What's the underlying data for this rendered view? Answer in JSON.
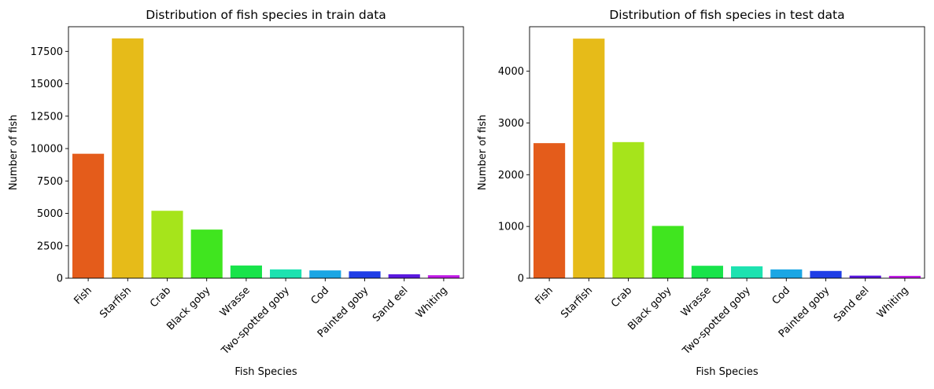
{
  "chart_data": [
    {
      "type": "bar",
      "title": "Distribution of fish species in train data",
      "xlabel": "Fish Species",
      "ylabel": "Number of fish",
      "categories": [
        "Fish",
        "Starfish",
        "Crab",
        "Black goby",
        "Wrasse",
        "Two-spotted goby",
        "Cod",
        "Painted goby",
        "Sand eel",
        "Whiting"
      ],
      "values": [
        9600,
        18500,
        5200,
        3750,
        980,
        680,
        600,
        530,
        300,
        230
      ],
      "ylim": [
        0,
        19400
      ],
      "yticks": [
        0,
        2500,
        5000,
        7500,
        10000,
        12500,
        15000,
        17500
      ],
      "ytick_labels": [
        "0",
        "2500",
        "5000",
        "7500",
        "10000",
        "12500",
        "15000",
        "17500"
      ],
      "grid": false
    },
    {
      "type": "bar",
      "title": "Distribution of fish species in test data",
      "xlabel": "Fish Species",
      "ylabel": "Number of fish",
      "categories": [
        "Fish",
        "Starfish",
        "Crab",
        "Black goby",
        "Wrasse",
        "Two-spotted goby",
        "Cod",
        "Painted goby",
        "Sand eel",
        "Whiting"
      ],
      "values": [
        2610,
        4630,
        2630,
        1010,
        240,
        230,
        170,
        140,
        50,
        45
      ],
      "ylim": [
        0,
        4860
      ],
      "yticks": [
        0,
        1000,
        2000,
        3000,
        4000
      ],
      "ytick_labels": [
        "0",
        "1000",
        "2000",
        "3000",
        "4000"
      ],
      "grid": false
    }
  ],
  "colors": [
    "#e45c1b",
    "#e6bb19",
    "#a6e41b",
    "#40e51f",
    "#18e34a",
    "#1de2b0",
    "#1ba6e4",
    "#1f3ee6",
    "#5a18e0",
    "#c019e6"
  ]
}
